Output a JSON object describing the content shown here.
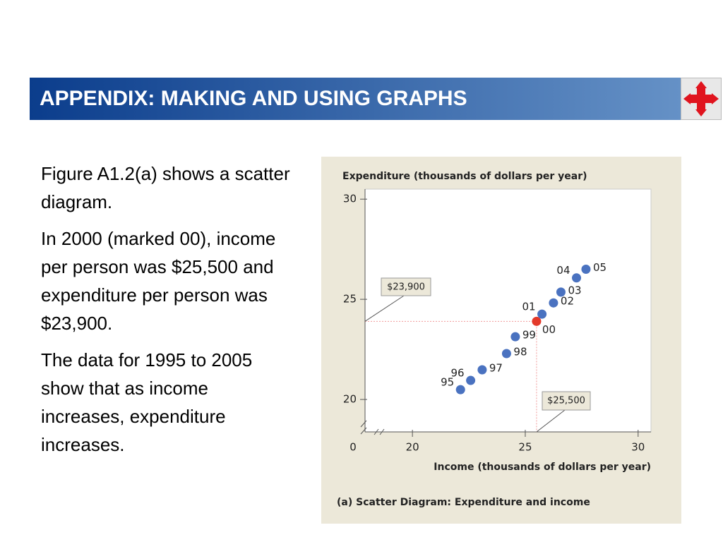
{
  "header": {
    "title": "APPENDIX: MAKING AND USING GRAPHS"
  },
  "text": [
    "Figure A1.2(a) shows a scatter diagram.",
    "In 2000 (marked 00), income per person was $25,500 and expenditure per person was $23,900.",
    "The data for 1995 to 2005 show that as income increases, expenditure increases."
  ],
  "chart_data": {
    "type": "scatter",
    "y_label": "Expenditure (thousands of dollars per year)",
    "x_label": "Income (thousands of dollars per year)",
    "caption": "(a)  Scatter Diagram: Expenditure and income",
    "origin_label": "0",
    "categories": [
      "95",
      "96",
      "97",
      "98",
      "99",
      "00",
      "01",
      "02",
      "03",
      "04",
      "05"
    ],
    "x": [
      22.13,
      22.58,
      23.09,
      24.17,
      24.56,
      25.5,
      25.74,
      26.25,
      26.58,
      27.27,
      27.69
    ],
    "values": [
      20.49,
      20.95,
      21.48,
      22.29,
      23.13,
      23.9,
      24.26,
      24.82,
      25.36,
      26.07,
      26.5
    ],
    "color": "#4a72c0",
    "highlight": {
      "index": 5,
      "color": "#e3392a"
    },
    "callouts": {
      "y": "$23,900",
      "x": "$25,500"
    },
    "xlim": [
      17.9,
      30.57
    ],
    "xticks": [
      20,
      25,
      30
    ],
    "ylim": [
      18.38,
      30.5
    ],
    "yticks": [
      20,
      25,
      30
    ]
  }
}
